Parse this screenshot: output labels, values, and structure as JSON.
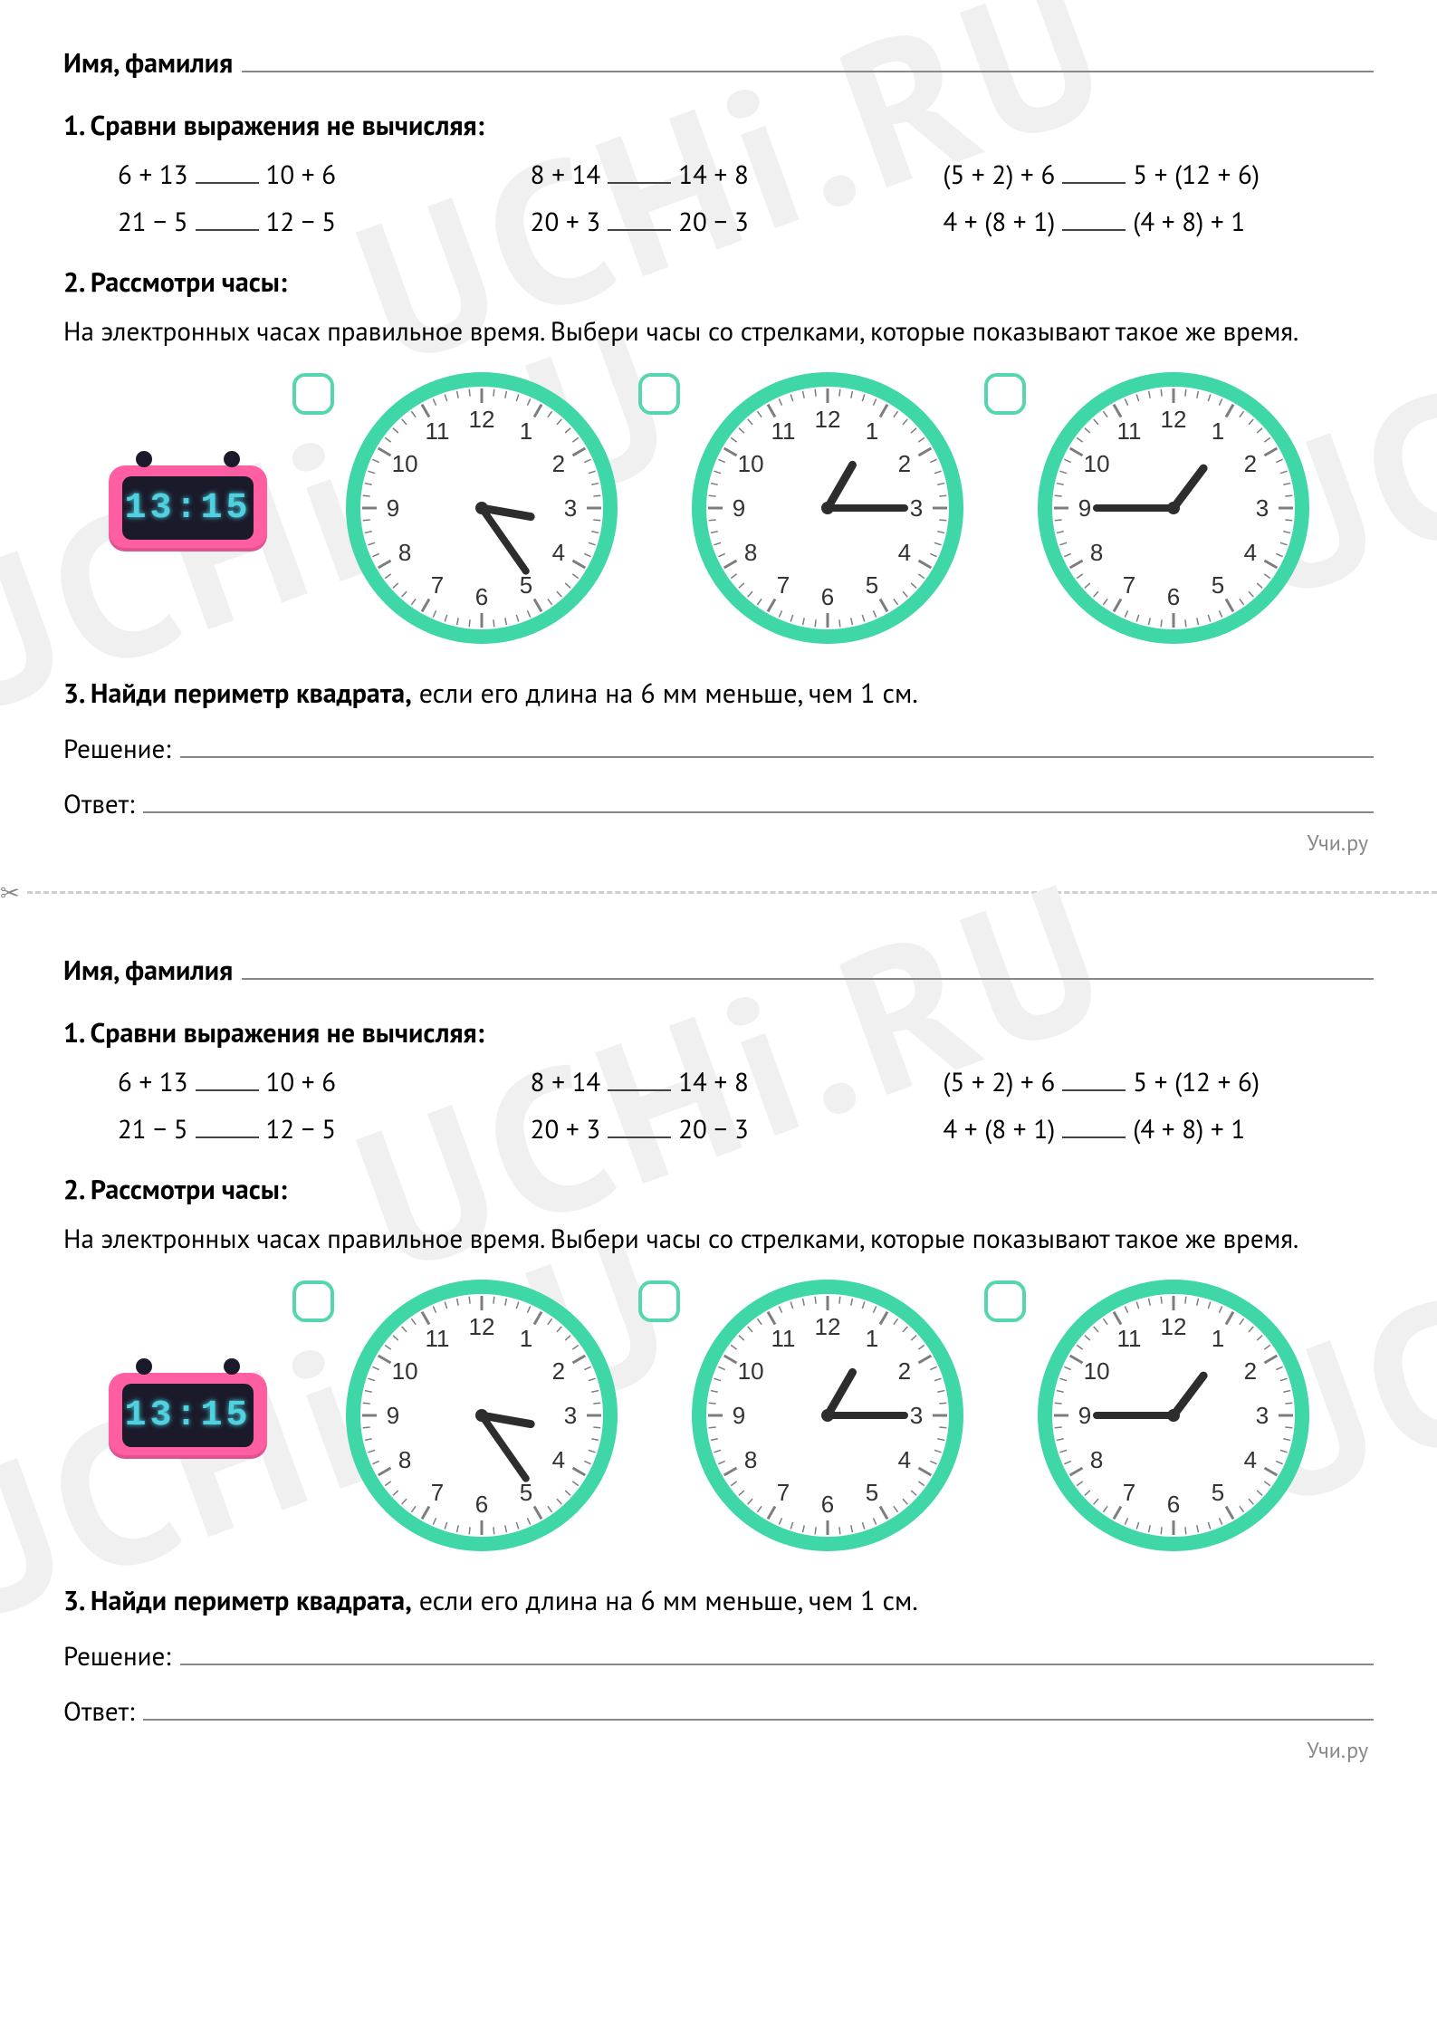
{
  "colors": {
    "text": "#000000",
    "watermark": "#f0f0f0",
    "underline": "#888888",
    "clock_ring": "#3fd6a8",
    "clock_face": "#ffffff",
    "clock_tick": "#7d7d7d",
    "clock_number": "#333333",
    "clock_hand": "#2d2d2d",
    "checkbox_border": "#56d6b0",
    "digital_body": "#ff5fa2",
    "digital_screen_bg": "#1a1a2a",
    "digital_screen_fg": "#4fd1e0",
    "cut_dash": "#cfcfcf",
    "footer": "#888888"
  },
  "watermark_text": "UCHi.RU",
  "name_label": "Имя, фамилия",
  "q1": {
    "title": "1. Сравни выражения не вычисляя:",
    "rows": [
      [
        {
          "left": "6 + 13",
          "right": "10 + 6"
        },
        {
          "left": "8 + 14",
          "right": "14 + 8"
        },
        {
          "left": "(5 + 2) + 6",
          "right": "5 + (12 + 6)"
        }
      ],
      [
        {
          "left": "21 − 5",
          "right": "12 − 5"
        },
        {
          "left": "20 + 3",
          "right": "20 − 3"
        },
        {
          "left": "4 + (8 + 1)",
          "right": "(4 + 8) + 1"
        }
      ]
    ]
  },
  "q2": {
    "title": "2. Рассмотри часы:",
    "desc": "На электронных часах правильное время. Выбери часы со стрелками, которые показывают такое же время.",
    "digital_time": "13:15",
    "clocks": [
      {
        "hour_angle": 100,
        "minute_angle": 145,
        "hour_len": 55,
        "minute_len": 85
      },
      {
        "hour_angle": 30,
        "minute_angle": 90,
        "hour_len": 55,
        "minute_len": 85
      },
      {
        "hour_angle": 37,
        "minute_angle": 270,
        "hour_len": 55,
        "minute_len": 85
      }
    ],
    "numerals": [
      "12",
      "1",
      "2",
      "3",
      "4",
      "5",
      "6",
      "7",
      "8",
      "9",
      "10",
      "11"
    ]
  },
  "q3": {
    "title_bold": "3. Найди периметр квадрата,",
    "title_rest": " если его длина на 6 мм меньше, чем 1 см.",
    "solution_label": "Решение:",
    "answer_label": "Ответ:"
  },
  "footer": "Учи.ру",
  "scissors_glyph": "✂"
}
